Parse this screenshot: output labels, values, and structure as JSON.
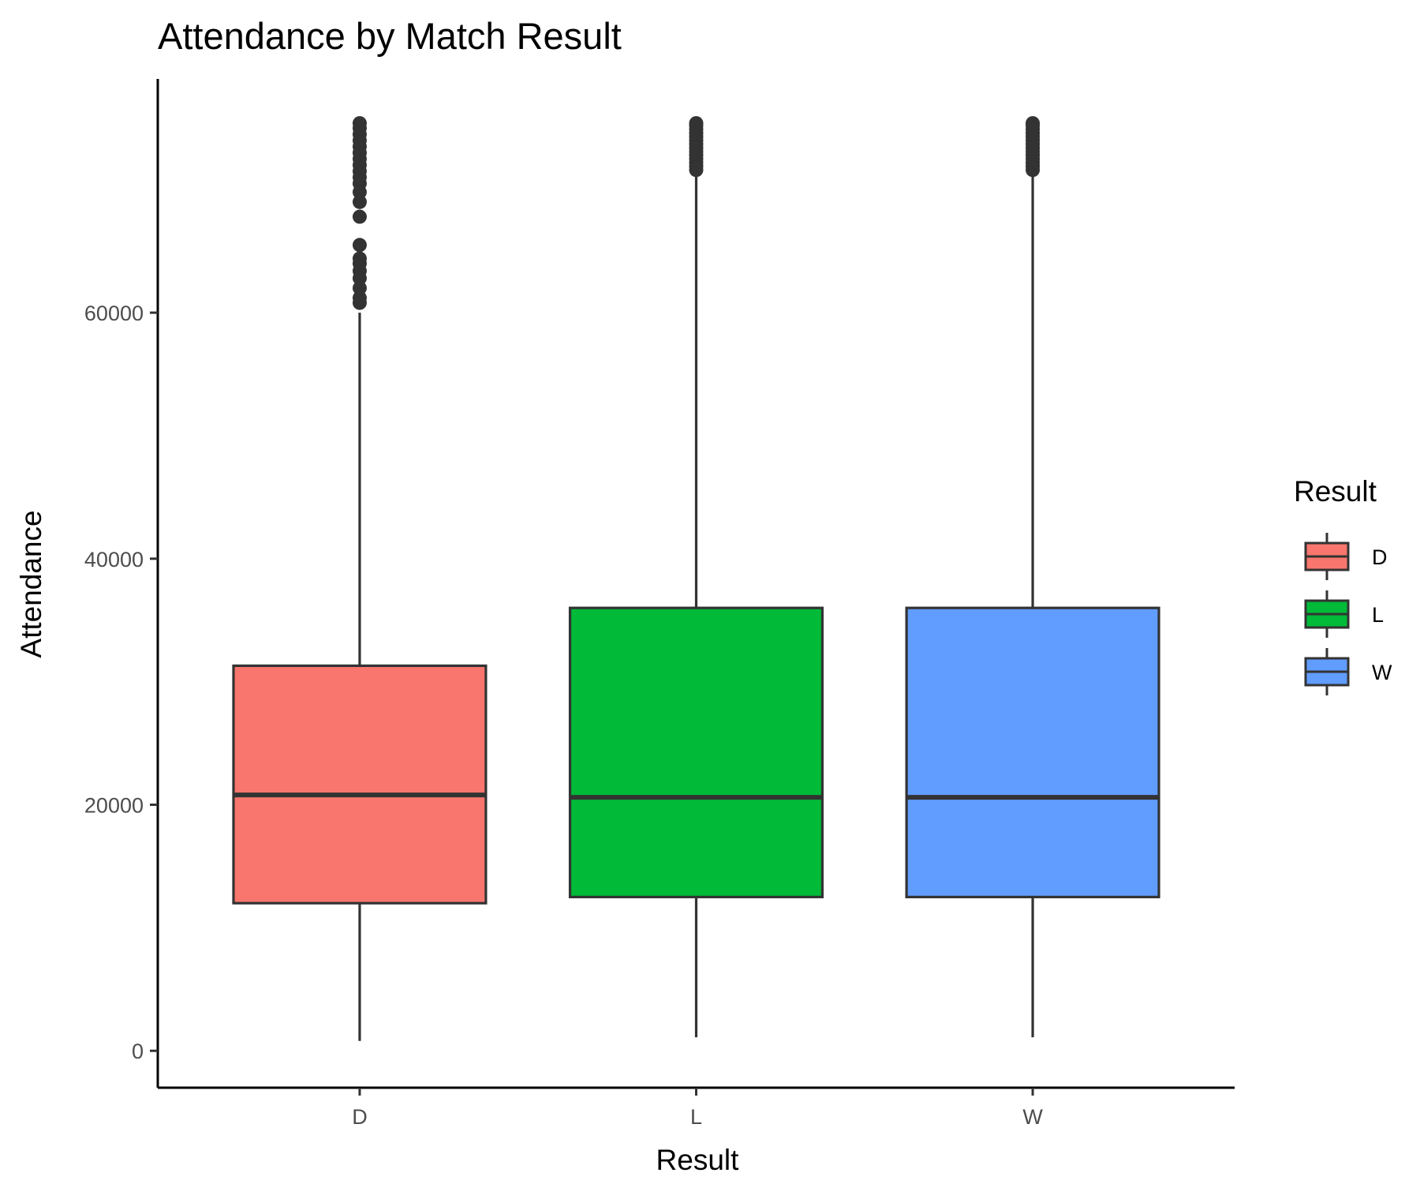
{
  "chart_data": {
    "type": "boxplot",
    "title": "Attendance by Match Result",
    "xlabel": "Result",
    "ylabel": "Attendance",
    "categories": [
      "D",
      "L",
      "W"
    ],
    "ylim": [
      -3000,
      79000
    ],
    "yticks": [
      0,
      20000,
      40000,
      60000
    ],
    "yticks_text": [
      "0",
      "20000",
      "40000",
      "60000"
    ],
    "grid": false,
    "legend": {
      "title": "Result",
      "placement": "right",
      "entries": [
        "D",
        "L",
        "W"
      ]
    },
    "colors": {
      "D": "#F8766D",
      "L": "#00BA38",
      "W": "#619CFF",
      "outline": "#333333",
      "axis": "#000000"
    },
    "boxes": [
      {
        "category": "D",
        "whisker_low": 800,
        "q1": 12000,
        "median": 20800,
        "q3": 31300,
        "whisker_high": 60000,
        "outliers": [
          60800,
          61200,
          62000,
          62800,
          63400,
          64000,
          64400,
          65500,
          67800,
          69000,
          69800,
          70500,
          71000,
          71500,
          72000,
          72500,
          73000,
          73500,
          74000,
          74500,
          75000,
          75400
        ]
      },
      {
        "category": "L",
        "whisker_low": 1100,
        "q1": 12500,
        "median": 20600,
        "q3": 36000,
        "whisker_high": 71400,
        "outliers": [
          71600,
          71900,
          72200,
          72500,
          72800,
          73100,
          73400,
          73700,
          74000,
          74300,
          74600,
          74900,
          75200,
          75400
        ]
      },
      {
        "category": "W",
        "whisker_low": 1100,
        "q1": 12500,
        "median": 20600,
        "q3": 36000,
        "whisker_high": 71400,
        "outliers": [
          71600,
          71900,
          72200,
          72500,
          72800,
          73100,
          73400,
          73700,
          74000,
          74300,
          74600,
          74900,
          75200,
          75400
        ]
      }
    ]
  }
}
